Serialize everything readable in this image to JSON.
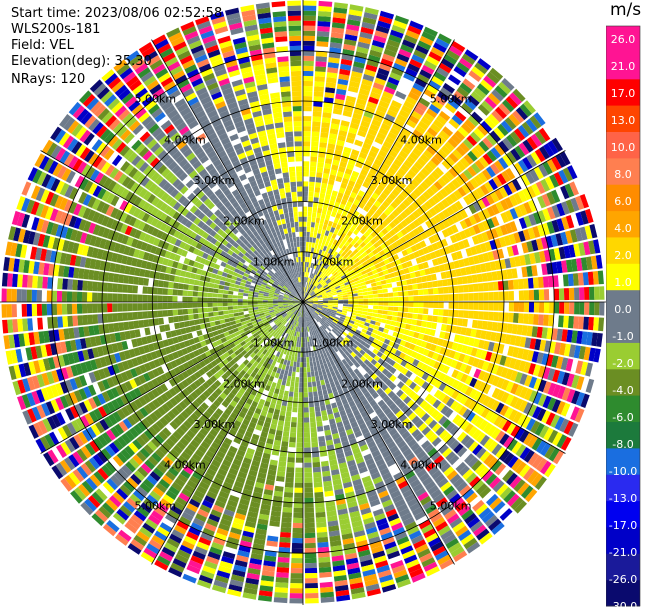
{
  "header": {
    "start_time": "Start time: 2023/08/06 02:52:58",
    "instrument": "WLS200s-181",
    "field": "Field: VEL",
    "elevation": "Elevation(deg): 35.30",
    "nrays": "NRays: 120"
  },
  "chart_data": {
    "type": "heatmap",
    "projection": "polar-ppi",
    "units_label": "m/s",
    "range_unit": "km",
    "max_range_km": 6.0,
    "ring_spacing_km": 1.0,
    "ring_labels": [
      "1.00km",
      "2.00km",
      "3.00km",
      "4.00km",
      "5.00km"
    ],
    "n_rays": 120,
    "spoke_spacing_deg": 30,
    "colorbar": {
      "range": [
        -30,
        30
      ],
      "ticks": [
        "26.0",
        "21.0",
        "17.0",
        "13.0",
        "10.0",
        "8.0",
        "6.0",
        "4.0",
        "2.0",
        "1.0",
        "0.0",
        "-1.0",
        "-2.0",
        "-4.0",
        "-6.0",
        "-8.0",
        "-10.0",
        "-13.0",
        "-17.0",
        "-21.0",
        "-26.0",
        "-30.0"
      ],
      "bounds": [
        -30,
        -26,
        -21,
        -17,
        -13,
        -10,
        -8,
        -6,
        -4,
        -2,
        -1,
        0,
        1,
        2,
        4,
        6,
        8,
        10,
        13,
        17,
        21,
        26,
        30
      ],
      "colors": [
        "#0a0a6e",
        "#1a1a9a",
        "#0000c8",
        "#0000f0",
        "#2a2af0",
        "#1a6ee0",
        "#1c7a3c",
        "#2e8b2e",
        "#6b8e23",
        "#9acd32",
        "#6e7b8b",
        "#6e7b8b",
        "#ffff00",
        "#ffd700",
        "#ffa500",
        "#ff8c00",
        "#ff7f50",
        "#ff6347",
        "#ff4500",
        "#ff0000",
        "#ff1493",
        "#ff1493"
      ]
    }
  }
}
